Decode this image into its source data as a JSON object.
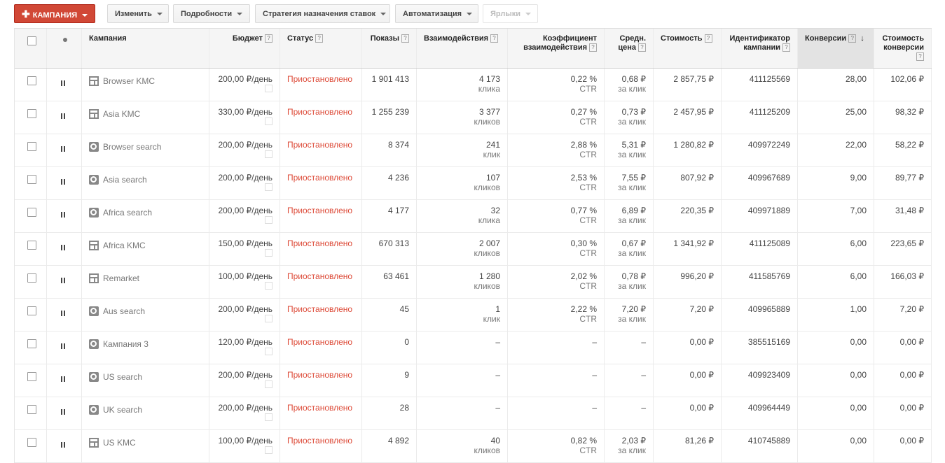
{
  "toolbar": {
    "buttons": [
      "КАМПАНИЯ",
      "Изменить",
      "Подробности",
      "Стратегия назначения ставок",
      "Автоматизация",
      "Ярлыки"
    ]
  },
  "table": {
    "headers": [
      "Кампания",
      "Бюджет",
      "Статус",
      "Показы",
      "Взаимодействия",
      "Коэффициент взаимодействия",
      "Средн. цена",
      "Стоимость",
      "Идентификатор кампании",
      "Конверсии",
      "Стоимость конверсии"
    ],
    "rows": [
      {
        "campaign": "Browser KMC",
        "icon": "display",
        "budget": "200,00 ₽/день",
        "status": "Приостановлено",
        "impressions": "1 901 413",
        "interactions": [
          "4 173",
          "клика"
        ],
        "rate": [
          "0,22 %",
          "CTR"
        ],
        "avg_price": [
          "0,68 ₽",
          "за клик"
        ],
        "cost": "2 857,75 ₽",
        "id": "411125569",
        "conversions": "28,00",
        "cost_per_conversion": "102,06 ₽"
      },
      {
        "campaign": "Asia KMC",
        "icon": "display",
        "budget": "330,00 ₽/день",
        "status": "Приостановлено",
        "impressions": "1 255 239",
        "interactions": [
          "3 377",
          "кликов"
        ],
        "rate": [
          "0,27 %",
          "CTR"
        ],
        "avg_price": [
          "0,73 ₽",
          "за клик"
        ],
        "cost": "2 457,95 ₽",
        "id": "411125209",
        "conversions": "25,00",
        "cost_per_conversion": "98,32 ₽"
      },
      {
        "campaign": "Browser search",
        "icon": "search",
        "budget": "200,00 ₽/день",
        "status": "Приостановлено",
        "impressions": "8 374",
        "interactions": [
          "241",
          "клик"
        ],
        "rate": [
          "2,88 %",
          "CTR"
        ],
        "avg_price": [
          "5,31 ₽",
          "за клик"
        ],
        "cost": "1 280,82 ₽",
        "id": "409972249",
        "conversions": "22,00",
        "cost_per_conversion": "58,22 ₽"
      },
      {
        "campaign": "Asia search",
        "icon": "search",
        "budget": "200,00 ₽/день",
        "status": "Приостановлено",
        "impressions": "4 236",
        "interactions": [
          "107",
          "кликов"
        ],
        "rate": [
          "2,53 %",
          "CTR"
        ],
        "avg_price": [
          "7,55 ₽",
          "за клик"
        ],
        "cost": "807,92 ₽",
        "id": "409967689",
        "conversions": "9,00",
        "cost_per_conversion": "89,77 ₽"
      },
      {
        "campaign": "Africa search",
        "icon": "search",
        "budget": "200,00 ₽/день",
        "status": "Приостановлено",
        "impressions": "4 177",
        "interactions": [
          "32",
          "клика"
        ],
        "rate": [
          "0,77 %",
          "CTR"
        ],
        "avg_price": [
          "6,89 ₽",
          "за клик"
        ],
        "cost": "220,35 ₽",
        "id": "409971889",
        "conversions": "7,00",
        "cost_per_conversion": "31,48 ₽"
      },
      {
        "campaign": "Africa KMC",
        "icon": "display",
        "budget": "150,00 ₽/день",
        "status": "Приостановлено",
        "impressions": "670 313",
        "interactions": [
          "2 007",
          "кликов"
        ],
        "rate": [
          "0,30 %",
          "CTR"
        ],
        "avg_price": [
          "0,67 ₽",
          "за клик"
        ],
        "cost": "1 341,92 ₽",
        "id": "411125089",
        "conversions": "6,00",
        "cost_per_conversion": "223,65 ₽"
      },
      {
        "campaign": "Remarket",
        "icon": "display",
        "budget": "100,00 ₽/день",
        "status": "Приостановлено",
        "impressions": "63 461",
        "interactions": [
          "1 280",
          "кликов"
        ],
        "rate": [
          "2,02 %",
          "CTR"
        ],
        "avg_price": [
          "0,78 ₽",
          "за клик"
        ],
        "cost": "996,20 ₽",
        "id": "411585769",
        "conversions": "6,00",
        "cost_per_conversion": "166,03 ₽"
      },
      {
        "campaign": "Aus search",
        "icon": "search",
        "budget": "200,00 ₽/день",
        "status": "Приостановлено",
        "impressions": "45",
        "interactions": [
          "1",
          "клик"
        ],
        "rate": [
          "2,22 %",
          "CTR"
        ],
        "avg_price": [
          "7,20 ₽",
          "за клик"
        ],
        "cost": "7,20 ₽",
        "id": "409965889",
        "conversions": "1,00",
        "cost_per_conversion": "7,20 ₽"
      },
      {
        "campaign": "Кампания 3",
        "icon": "search",
        "budget": "120,00 ₽/день",
        "status": "Приостановлено",
        "impressions": "0",
        "interactions": [
          "–"
        ],
        "rate": [
          "–"
        ],
        "avg_price": [
          "–"
        ],
        "cost": "0,00 ₽",
        "id": "385515169",
        "conversions": "0,00",
        "cost_per_conversion": "0,00 ₽"
      },
      {
        "campaign": "US search",
        "icon": "search",
        "budget": "200,00 ₽/день",
        "status": "Приостановлено",
        "impressions": "9",
        "interactions": [
          "–"
        ],
        "rate": [
          "–"
        ],
        "avg_price": [
          "–"
        ],
        "cost": "0,00 ₽",
        "id": "409923409",
        "conversions": "0,00",
        "cost_per_conversion": "0,00 ₽"
      },
      {
        "campaign": "UK search",
        "icon": "search",
        "budget": "200,00 ₽/день",
        "status": "Приостановлено",
        "impressions": "28",
        "interactions": [
          "–"
        ],
        "rate": [
          "–"
        ],
        "avg_price": [
          "–"
        ],
        "cost": "0,00 ₽",
        "id": "409964449",
        "conversions": "0,00",
        "cost_per_conversion": "0,00 ₽"
      },
      {
        "campaign": "US KMC",
        "icon": "display",
        "budget": "100,00 ₽/день",
        "status": "Приостановлено",
        "impressions": "4 892",
        "interactions": [
          "40",
          "кликов"
        ],
        "rate": [
          "0,82 %",
          "CTR"
        ],
        "avg_price": [
          "2,03 ₽",
          "за клик"
        ],
        "cost": "81,26 ₽",
        "id": "410745889",
        "conversions": "0,00",
        "cost_per_conversion": "0,00 ₽"
      }
    ]
  }
}
